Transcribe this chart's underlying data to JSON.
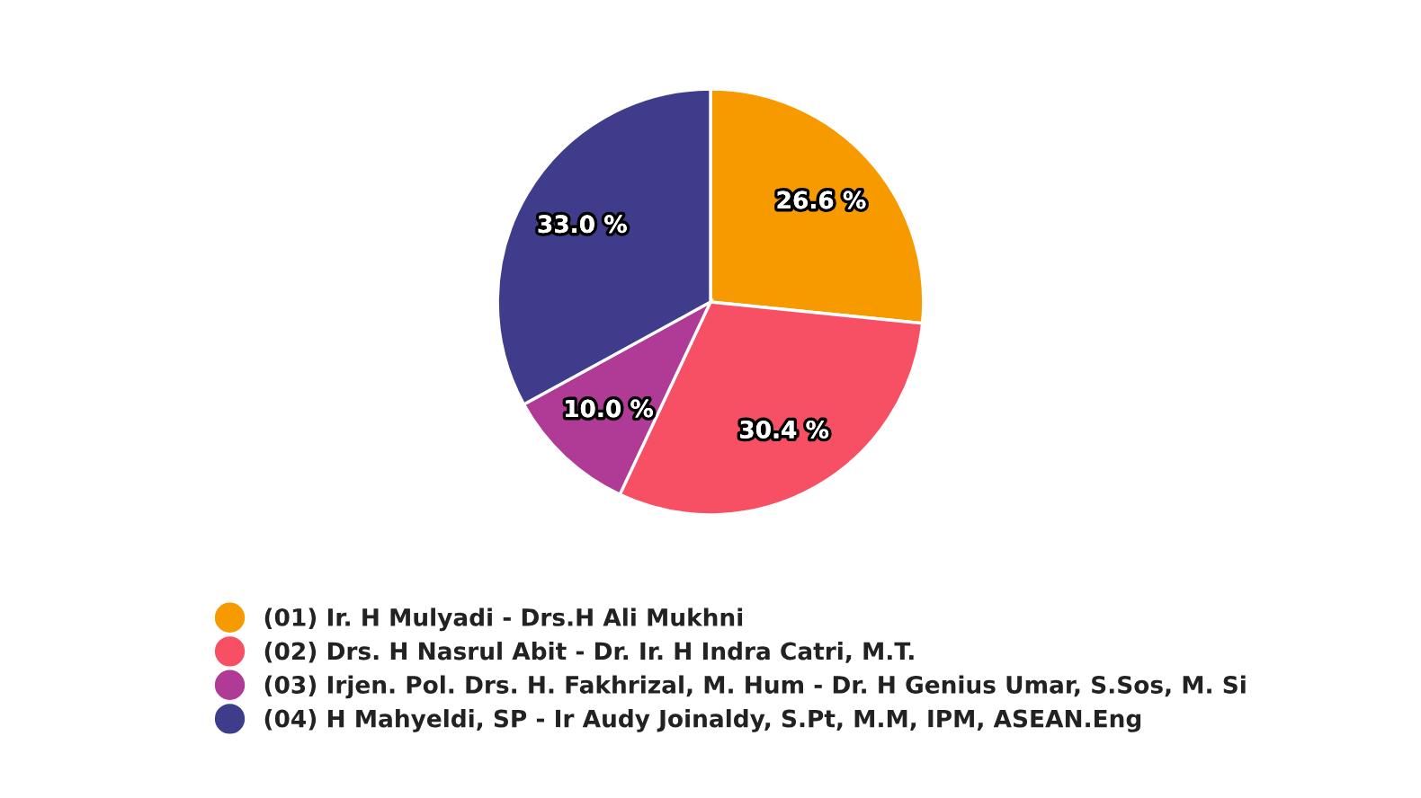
{
  "chart_data": {
    "type": "pie",
    "categories": [
      "(01) Ir. H Mulyadi - Drs.H Ali Mukhni",
      "(02) Drs. H Nasrul Abit - Dr. Ir. H Indra Catri, M.T.",
      "(03) Irjen. Pol. Drs. H. Fakhrizal, M. Hum - Dr. H Genius Umar, S.Sos, M. Si",
      "(04) H Mahyeldi, SP - Ir Audy Joinaldy, S.Pt, M.M, IPM, ASEAN.Eng"
    ],
    "values": [
      26.6,
      30.4,
      10.0,
      33.0
    ],
    "colors": [
      "#f79a00",
      "#f75064",
      "#b03b96",
      "#403c8c"
    ],
    "value_labels": [
      "26.6 %",
      "30.4 %",
      "10.0 %",
      "33.0 %"
    ],
    "legend": "bottom"
  }
}
